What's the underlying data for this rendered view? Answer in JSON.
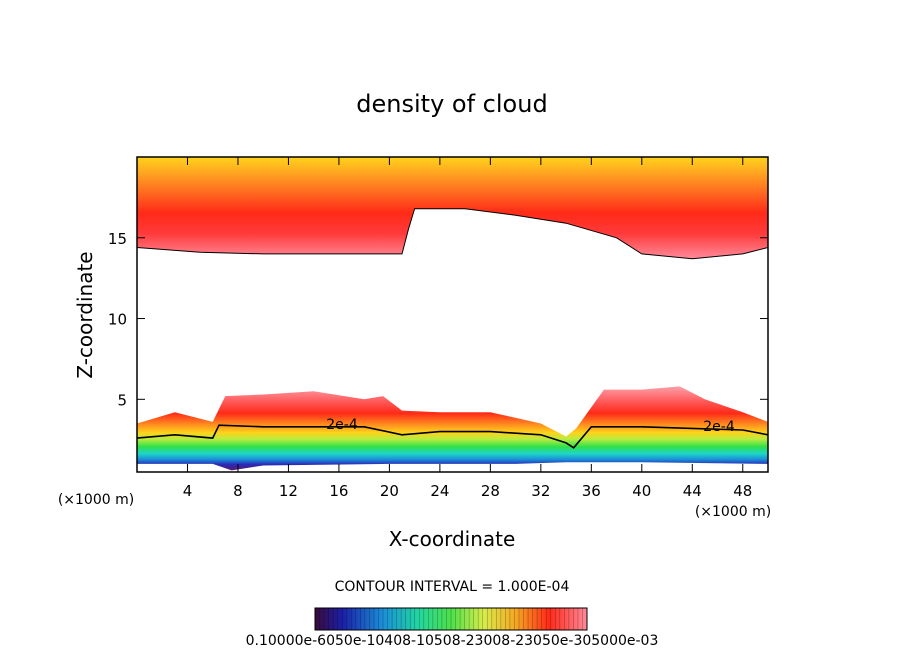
{
  "chart_data": {
    "type": "heatmap",
    "title": "density of cloud",
    "xlabel": "X-coordinate",
    "ylabel": "Z-coordinate",
    "x_unit": "(×1000 m)",
    "xlim": [
      0,
      50
    ],
    "ylim": [
      0.5,
      20
    ],
    "x_ticks": [
      4,
      8,
      12,
      16,
      20,
      24,
      28,
      32,
      36,
      40,
      44,
      48
    ],
    "y_ticks": [
      5,
      10,
      15
    ],
    "contour_interval_text": "CONTOUR INTERVAL = 1.000E-04",
    "contour_label": "2e-4",
    "colorbar_labels_text": "0.10000e-6050e-10408-10508-23008-23050e-305000e-03",
    "upper_cloud_base": {
      "x": [
        0,
        5,
        10,
        15,
        21,
        21.5,
        22,
        26,
        30,
        34,
        38,
        40,
        44,
        48,
        50
      ],
      "z": [
        14.4,
        14.1,
        14.0,
        14.0,
        14.0,
        15.5,
        16.8,
        16.8,
        16.4,
        15.9,
        15.0,
        14.0,
        13.7,
        14.0,
        14.4
      ]
    },
    "lower_cloud_top": {
      "x": [
        0,
        3,
        6,
        7,
        10,
        14,
        18,
        19.5,
        21,
        24,
        28,
        32,
        34,
        34.8,
        37,
        40,
        43,
        45,
        48,
        50
      ],
      "z": [
        3.5,
        4.2,
        3.6,
        5.2,
        5.3,
        5.5,
        5.0,
        5.2,
        4.3,
        4.2,
        4.2,
        3.5,
        2.7,
        3.2,
        5.6,
        5.6,
        5.8,
        5.0,
        4.2,
        3.6
      ]
    },
    "contour_2e4": {
      "x": [
        0,
        3,
        6,
        6.5,
        10,
        14,
        18,
        21,
        24,
        28,
        32,
        34,
        34.6,
        36,
        40,
        44,
        48,
        50
      ],
      "z": [
        2.6,
        2.8,
        2.6,
        3.4,
        3.3,
        3.3,
        3.3,
        2.8,
        3.0,
        3.0,
        2.8,
        2.3,
        2.0,
        3.3,
        3.3,
        3.2,
        3.1,
        2.8
      ]
    },
    "lower_cloud_base": {
      "x": [
        0,
        6,
        7.5,
        10,
        20,
        30,
        34,
        40,
        50
      ],
      "z": [
        1.0,
        1.0,
        0.6,
        0.9,
        1.0,
        1.0,
        1.1,
        1.1,
        1.0
      ]
    },
    "colorbar_stops": [
      "#5a1a6e",
      "#1b1fa8",
      "#1a8fd8",
      "#22d6a0",
      "#4ee04a",
      "#c8ec4a",
      "#f4e24a",
      "#f5a623",
      "#f25a1e",
      "#ff1a1a",
      "#ff8a9a"
    ]
  }
}
